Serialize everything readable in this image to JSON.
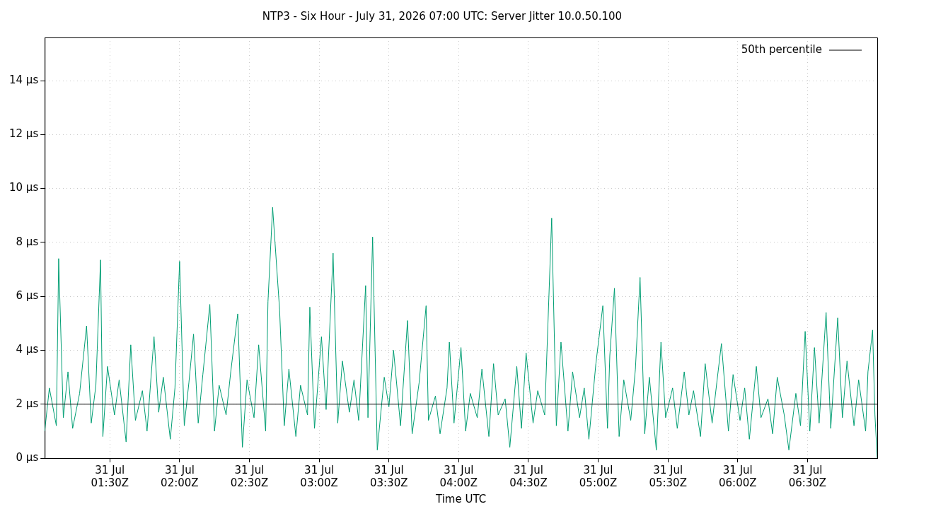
{
  "chart_data": {
    "type": "line",
    "title": "NTP3 - Six Hour - July 31, 2026 07:00 UTC: Server Jitter 10.0.50.100",
    "xlabel": "Time UTC",
    "xlim": [
      "2026-07-31T01:02",
      "2026-07-31T07:00"
    ],
    "xticks": [
      {
        "value": "2026-07-31T01:30",
        "label": "31 Jul\n01:30Z"
      },
      {
        "value": "2026-07-31T02:00",
        "label": "31 Jul\n02:00Z"
      },
      {
        "value": "2026-07-31T02:30",
        "label": "31 Jul\n02:30Z"
      },
      {
        "value": "2026-07-31T03:00",
        "label": "31 Jul\n03:00Z"
      },
      {
        "value": "2026-07-31T03:30",
        "label": "31 Jul\n03:30Z"
      },
      {
        "value": "2026-07-31T04:00",
        "label": "31 Jul\n04:00Z"
      },
      {
        "value": "2026-07-31T04:30",
        "label": "31 Jul\n04:30Z"
      },
      {
        "value": "2026-07-31T05:00",
        "label": "31 Jul\n05:00Z"
      },
      {
        "value": "2026-07-31T05:30",
        "label": "31 Jul\n05:30Z"
      },
      {
        "value": "2026-07-31T06:00",
        "label": "31 Jul\n06:00Z"
      },
      {
        "value": "2026-07-31T06:30",
        "label": "31 Jul\n06:30Z"
      }
    ],
    "ylim": [
      0,
      15.6
    ],
    "yticks": [
      {
        "value": 0,
        "label": "0 µs"
      },
      {
        "value": 2,
        "label": "2 µs"
      },
      {
        "value": 4,
        "label": "4 µs"
      },
      {
        "value": 6,
        "label": "6 µs"
      },
      {
        "value": 8,
        "label": "8 µs"
      },
      {
        "value": 10,
        "label": "10 µs"
      },
      {
        "value": 12,
        "label": "12 µs"
      },
      {
        "value": 14,
        "label": "14 µs"
      }
    ],
    "grid": true,
    "legend": "top right",
    "marker": "none",
    "line_style": "solid",
    "series": [
      {
        "name": "50th percentile",
        "color": "#000000",
        "x": [
          "2026-07-31T01:02",
          "2026-07-31T07:00"
        ],
        "values": [
          2,
          2
        ]
      },
      {
        "color": "#009e73",
        "x": [
          "2026-07-31T01:02",
          "2026-07-31T01:04",
          "2026-07-31T01:07",
          "2026-07-31T01:08",
          "2026-07-31T01:10",
          "2026-07-31T01:12",
          "2026-07-31T01:14",
          "2026-07-31T01:17",
          "2026-07-31T01:20",
          "2026-07-31T01:22",
          "2026-07-31T01:24",
          "2026-07-31T01:26",
          "2026-07-31T01:27",
          "2026-07-31T01:29",
          "2026-07-31T01:32",
          "2026-07-31T01:34",
          "2026-07-31T01:37",
          "2026-07-31T01:39",
          "2026-07-31T01:41",
          "2026-07-31T01:44",
          "2026-07-31T01:46",
          "2026-07-31T01:49",
          "2026-07-31T01:51",
          "2026-07-31T01:53",
          "2026-07-31T01:56",
          "2026-07-31T01:58",
          "2026-07-31T02:00",
          "2026-07-31T02:02",
          "2026-07-31T02:04",
          "2026-07-31T02:06",
          "2026-07-31T02:08",
          "2026-07-31T02:10",
          "2026-07-31T02:13",
          "2026-07-31T02:15",
          "2026-07-31T02:17",
          "2026-07-31T02:20",
          "2026-07-31T02:22",
          "2026-07-31T02:25",
          "2026-07-31T02:27",
          "2026-07-31T02:29",
          "2026-07-31T02:32",
          "2026-07-31T02:34",
          "2026-07-31T02:37",
          "2026-07-31T02:38",
          "2026-07-31T02:40",
          "2026-07-31T02:43",
          "2026-07-31T02:45",
          "2026-07-31T02:47",
          "2026-07-31T02:50",
          "2026-07-31T02:52",
          "2026-07-31T02:55",
          "2026-07-31T02:56",
          "2026-07-31T02:58",
          "2026-07-31T03:01",
          "2026-07-31T03:03",
          "2026-07-31T03:06",
          "2026-07-31T03:08",
          "2026-07-31T03:10",
          "2026-07-31T03:13",
          "2026-07-31T03:15",
          "2026-07-31T03:17",
          "2026-07-31T03:20",
          "2026-07-31T03:21",
          "2026-07-31T03:23",
          "2026-07-31T03:25",
          "2026-07-31T03:28",
          "2026-07-31T03:30",
          "2026-07-31T03:32",
          "2026-07-31T03:35",
          "2026-07-31T03:38",
          "2026-07-31T03:40",
          "2026-07-31T03:43",
          "2026-07-31T03:46",
          "2026-07-31T03:47",
          "2026-07-31T03:50",
          "2026-07-31T03:52",
          "2026-07-31T03:55",
          "2026-07-31T03:56",
          "2026-07-31T03:58",
          "2026-07-31T04:01",
          "2026-07-31T04:03",
          "2026-07-31T04:05",
          "2026-07-31T04:08",
          "2026-07-31T04:10",
          "2026-07-31T04:13",
          "2026-07-31T04:15",
          "2026-07-31T04:17",
          "2026-07-31T04:20",
          "2026-07-31T04:22",
          "2026-07-31T04:25",
          "2026-07-31T04:27",
          "2026-07-31T04:29",
          "2026-07-31T04:32",
          "2026-07-31T04:34",
          "2026-07-31T04:37",
          "2026-07-31T04:40",
          "2026-07-31T04:42",
          "2026-07-31T04:44",
          "2026-07-31T04:47",
          "2026-07-31T04:49",
          "2026-07-31T04:52",
          "2026-07-31T04:54",
          "2026-07-31T04:56",
          "2026-07-31T04:59",
          "2026-07-31T05:02",
          "2026-07-31T05:04",
          "2026-07-31T05:05",
          "2026-07-31T05:07",
          "2026-07-31T05:09",
          "2026-07-31T05:11",
          "2026-07-31T05:14",
          "2026-07-31T05:16",
          "2026-07-31T05:18",
          "2026-07-31T05:20",
          "2026-07-31T05:22",
          "2026-07-31T05:25",
          "2026-07-31T05:27",
          "2026-07-31T05:29",
          "2026-07-31T05:32",
          "2026-07-31T05:34",
          "2026-07-31T05:37",
          "2026-07-31T05:39",
          "2026-07-31T05:41",
          "2026-07-31T05:44",
          "2026-07-31T05:46",
          "2026-07-31T05:49",
          "2026-07-31T05:51",
          "2026-07-31T05:53",
          "2026-07-31T05:56",
          "2026-07-31T05:58",
          "2026-07-31T06:01",
          "2026-07-31T06:03",
          "2026-07-31T06:05",
          "2026-07-31T06:08",
          "2026-07-31T06:10",
          "2026-07-31T06:13",
          "2026-07-31T06:15",
          "2026-07-31T06:17",
          "2026-07-31T06:20",
          "2026-07-31T06:22",
          "2026-07-31T06:25",
          "2026-07-31T06:27",
          "2026-07-31T06:29",
          "2026-07-31T06:31",
          "2026-07-31T06:33",
          "2026-07-31T06:35",
          "2026-07-31T06:38",
          "2026-07-31T06:40",
          "2026-07-31T06:43",
          "2026-07-31T06:45",
          "2026-07-31T06:47",
          "2026-07-31T06:50",
          "2026-07-31T06:52",
          "2026-07-31T06:55",
          "2026-07-31T06:56",
          "2026-07-31T06:58",
          "2026-07-31T06:59",
          "2026-07-31T07:00"
        ],
        "values": [
          1.0,
          2.6,
          1.2,
          7.4,
          1.5,
          3.2,
          1.1,
          2.4,
          4.9,
          1.3,
          2.7,
          7.35,
          0.8,
          3.4,
          1.6,
          2.9,
          0.6,
          4.2,
          1.4,
          2.5,
          1.0,
          4.5,
          1.7,
          3.0,
          0.7,
          2.6,
          7.3,
          1.2,
          2.8,
          4.6,
          1.3,
          3.1,
          5.7,
          1.0,
          2.7,
          1.6,
          3.2,
          5.35,
          0.4,
          2.9,
          1.5,
          4.2,
          1.0,
          5.8,
          9.3,
          5.5,
          1.2,
          3.3,
          0.8,
          2.7,
          1.6,
          5.6,
          1.1,
          4.5,
          1.8,
          7.6,
          1.3,
          3.6,
          1.7,
          2.9,
          1.4,
          6.4,
          1.5,
          8.2,
          0.3,
          3.0,
          1.9,
          4.0,
          1.2,
          5.1,
          0.9,
          2.8,
          5.65,
          1.4,
          2.3,
          0.9,
          2.6,
          4.3,
          1.3,
          4.1,
          1.0,
          2.4,
          1.5,
          3.3,
          0.8,
          3.5,
          1.6,
          2.2,
          0.4,
          3.4,
          1.1,
          3.9,
          1.3,
          2.5,
          1.6,
          8.9,
          1.2,
          4.3,
          1.0,
          3.2,
          1.5,
          2.6,
          0.7,
          3.5,
          5.65,
          1.1,
          3.8,
          6.3,
          0.8,
          2.9,
          1.4,
          3.3,
          6.7,
          0.9,
          3.0,
          0.3,
          4.3,
          1.5,
          2.6,
          1.1,
          3.2,
          1.6,
          2.5,
          0.8,
          3.5,
          1.3,
          2.8,
          4.25,
          1.0,
          3.1,
          1.4,
          2.6,
          0.7,
          3.4,
          1.5,
          2.2,
          0.9,
          3.0,
          1.6,
          0.3,
          2.4,
          1.2,
          4.7,
          1.0,
          4.1,
          1.3,
          5.4,
          1.1,
          5.2,
          1.5,
          3.6,
          1.2,
          2.9,
          1.0,
          3.2,
          4.75,
          1.6,
          0.0
        ]
      }
    ]
  }
}
